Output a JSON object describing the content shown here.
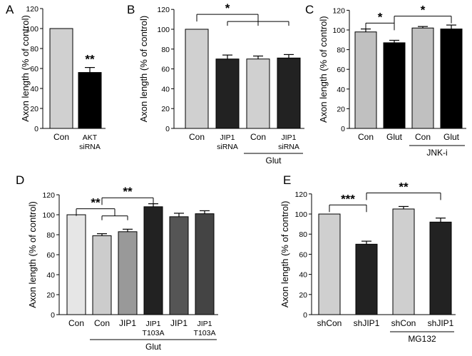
{
  "chart_data": [
    {
      "id": "A",
      "type": "bar",
      "ylabel": "Axon length (% of control)",
      "ylim": [
        0,
        120
      ],
      "yticks": [
        0,
        20,
        40,
        60,
        80,
        100,
        120
      ],
      "bars": [
        {
          "label": "Con",
          "value": 100,
          "err": 0,
          "color": "#d0d0d0"
        },
        {
          "label": "AKT\nsiRNA",
          "value": 56,
          "err": 5,
          "color": "#000000",
          "star": "**"
        }
      ],
      "brackets": [],
      "groups": []
    },
    {
      "id": "B",
      "type": "bar",
      "ylabel": "Axon length (% of control)",
      "ylim": [
        0,
        120
      ],
      "yticks": [
        0,
        20,
        40,
        60,
        80,
        100,
        120
      ],
      "bars": [
        {
          "label": "Con",
          "value": 100,
          "err": 0,
          "color": "#d0d0d0"
        },
        {
          "label": "JIP1\nsiRNA",
          "value": 70,
          "err": 4,
          "color": "#222222"
        },
        {
          "label": "Con",
          "value": 70,
          "err": 3,
          "color": "#d0d0d0"
        },
        {
          "label": "JIP1\nsiRNA",
          "value": 71,
          "err": 3.5,
          "color": "#222222"
        }
      ],
      "brackets": [
        {
          "from": [
            0
          ],
          "to": [
            1,
            2,
            3
          ],
          "y": 115,
          "label": "*"
        }
      ],
      "groups": [
        {
          "label": "Glut",
          "from": 2,
          "to": 3
        }
      ]
    },
    {
      "id": "C",
      "type": "bar",
      "ylabel": "Axon length (% of control)",
      "ylim": [
        0,
        120
      ],
      "yticks": [
        0,
        20,
        40,
        60,
        80,
        100,
        120
      ],
      "bars": [
        {
          "label": "Con",
          "value": 98,
          "err": 3,
          "color": "#c0c0c0"
        },
        {
          "label": "Glut",
          "value": 87,
          "err": 2.5,
          "color": "#000000"
        },
        {
          "label": "Con",
          "value": 102,
          "err": 1.5,
          "color": "#c0c0c0"
        },
        {
          "label": "Glut",
          "value": 101,
          "err": 4,
          "color": "#000000"
        }
      ],
      "brackets": [
        {
          "from": [
            0
          ],
          "to": [
            1
          ],
          "y": 107,
          "label": "*"
        },
        {
          "from": [
            1
          ],
          "to": [
            3
          ],
          "y": 114,
          "label": "*"
        }
      ],
      "groups": [
        {
          "label": "JNK-i",
          "from": 2,
          "to": 3
        }
      ]
    },
    {
      "id": "D",
      "type": "bar",
      "ylabel": "Axon length (% of control)",
      "ylim": [
        0,
        120
      ],
      "yticks": [
        0,
        20,
        40,
        60,
        80,
        100,
        120
      ],
      "bars": [
        {
          "label": "Con",
          "value": 100,
          "err": 0,
          "color": "#e6e6e6"
        },
        {
          "label": "Con",
          "value": 79,
          "err": 2,
          "color": "#cccccc"
        },
        {
          "label": "JIP1",
          "value": 83,
          "err": 2.5,
          "color": "#999999"
        },
        {
          "label": "JIP1\nT103A",
          "value": 108,
          "err": 3,
          "color": "#222222"
        },
        {
          "label": "JIP1",
          "value": 98,
          "err": 3.5,
          "color": "#555555"
        },
        {
          "label": "JIP1\nT103A",
          "value": 101,
          "err": 3,
          "color": "#444444"
        }
      ],
      "brackets": [
        {
          "from": [
            0
          ],
          "to": [
            1,
            2
          ],
          "y": 106,
          "label": "**"
        },
        {
          "from": [
            1
          ],
          "to": [
            3
          ],
          "y": 117,
          "label": "**"
        }
      ],
      "groups": [
        {
          "label": "Glut",
          "from": 1,
          "to": 5
        }
      ]
    },
    {
      "id": "E",
      "type": "bar",
      "ylabel": "Axon length (% of control)",
      "ylim": [
        0,
        120
      ],
      "yticks": [
        0,
        20,
        40,
        60,
        80,
        100,
        120
      ],
      "bars": [
        {
          "label": "shCon",
          "value": 100,
          "err": 0,
          "color": "#cfcfcf"
        },
        {
          "label": "shJIP1",
          "value": 70,
          "err": 3,
          "color": "#222222"
        },
        {
          "label": "shCon",
          "value": 105,
          "err": 2.5,
          "color": "#cfcfcf"
        },
        {
          "label": "shJIP1",
          "value": 92,
          "err": 4,
          "color": "#222222"
        }
      ],
      "brackets": [
        {
          "from": [
            0
          ],
          "to": [
            1
          ],
          "y": 109,
          "label": "***"
        },
        {
          "from": [
            1
          ],
          "to": [
            3
          ],
          "y": 121,
          "label": "**"
        }
      ],
      "groups": [
        {
          "label": "MG132",
          "from": 2,
          "to": 3
        }
      ]
    }
  ]
}
